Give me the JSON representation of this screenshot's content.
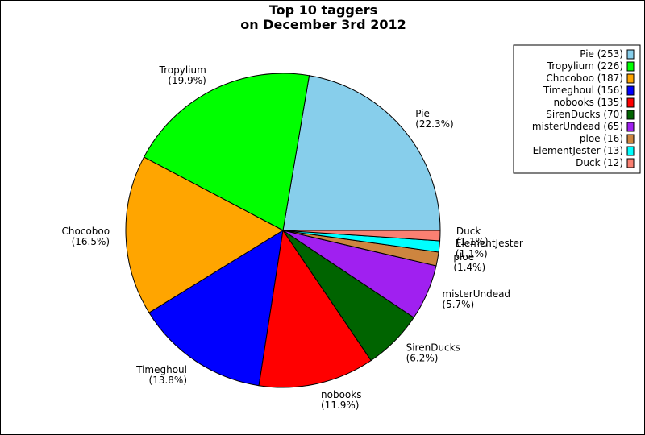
{
  "chart_data": {
    "type": "pie",
    "title": [
      "Top 10 taggers",
      "on December 3rd 2012"
    ],
    "legend_position": "top-right",
    "slices": [
      {
        "name": "Pie",
        "value": 253,
        "percent_label": "(22.3%)",
        "legend": "Pie (253)",
        "color": "#87ceeb"
      },
      {
        "name": "Tropylium",
        "value": 226,
        "percent_label": "(19.9%)",
        "legend": "Tropylium (226)",
        "color": "#00ff00"
      },
      {
        "name": "Chocoboo",
        "value": 187,
        "percent_label": "(16.5%)",
        "legend": "Chocoboo (187)",
        "color": "#ffa500"
      },
      {
        "name": "Timeghoul",
        "value": 156,
        "percent_label": "(13.8%)",
        "legend": "Timeghoul (156)",
        "color": "#0000ff"
      },
      {
        "name": "nobooks",
        "value": 135,
        "percent_label": "(11.9%)",
        "legend": "nobooks (135)",
        "color": "#ff0000"
      },
      {
        "name": "SirenDucks",
        "value": 70,
        "percent_label": "(6.2%)",
        "legend": "SirenDucks (70)",
        "color": "#006400"
      },
      {
        "name": "misterUndead",
        "value": 65,
        "percent_label": "(5.7%)",
        "legend": "misterUndead (65)",
        "color": "#a020f0"
      },
      {
        "name": "ploe",
        "value": 16,
        "percent_label": "(1.4%)",
        "legend": "ploe (16)",
        "color": "#cd853f"
      },
      {
        "name": "ElementJester",
        "value": 13,
        "percent_label": "(1.1%)",
        "legend": "ElementJester (13)",
        "color": "#00ffff"
      },
      {
        "name": "Duck",
        "value": 12,
        "percent_label": "(1.1%)",
        "legend": "Duck (12)",
        "color": "#fa8072"
      }
    ]
  }
}
